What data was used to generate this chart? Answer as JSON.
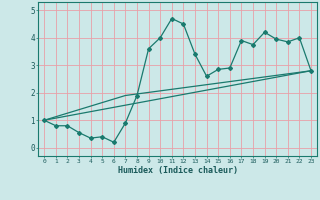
{
  "title": "",
  "xlabel": "Humidex (Indice chaleur)",
  "xlim": [
    -0.5,
    23.5
  ],
  "ylim": [
    -0.3,
    5.3
  ],
  "xticks": [
    0,
    1,
    2,
    3,
    4,
    5,
    6,
    7,
    8,
    9,
    10,
    11,
    12,
    13,
    14,
    15,
    16,
    17,
    18,
    19,
    20,
    21,
    22,
    23
  ],
  "yticks": [
    0,
    1,
    2,
    3,
    4,
    5
  ],
  "bg_color": "#cce8e8",
  "grid_color": "#e8a0a8",
  "line_color": "#1a7a6e",
  "line1_x": [
    0,
    1,
    2,
    3,
    4,
    5,
    6,
    7,
    8,
    9,
    10,
    11,
    12,
    13,
    14,
    15,
    16,
    17,
    18,
    19,
    20,
    21,
    22,
    23
  ],
  "line1_y": [
    1.0,
    0.8,
    0.8,
    0.55,
    0.35,
    0.4,
    0.2,
    0.9,
    1.9,
    3.6,
    4.0,
    4.7,
    4.5,
    3.4,
    2.6,
    2.85,
    2.9,
    3.9,
    3.75,
    4.2,
    3.95,
    3.85,
    4.0,
    2.8
  ],
  "line2_x": [
    0,
    7,
    23
  ],
  "line2_y": [
    1.0,
    1.9,
    2.8
  ],
  "line3_x": [
    0,
    23
  ],
  "line3_y": [
    1.0,
    2.8
  ]
}
